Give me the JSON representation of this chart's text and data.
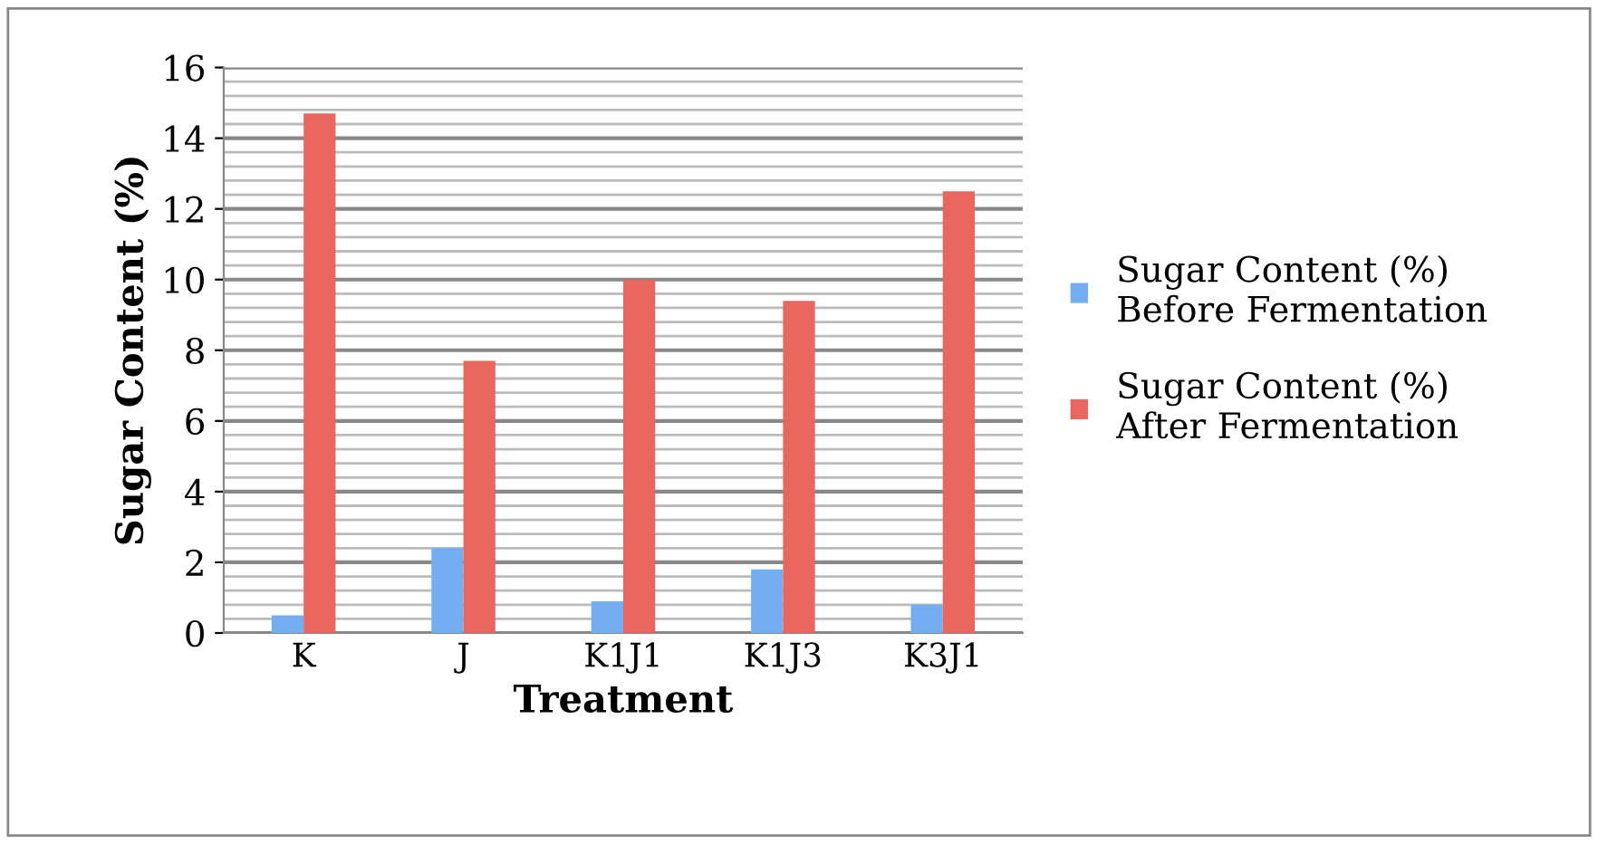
{
  "chart_data": {
    "type": "bar",
    "xlabel": "Treatment",
    "ylabel": "Sugar Content (%)",
    "categories": [
      "K",
      "J",
      "K1J1",
      "K1J3",
      "K3J1"
    ],
    "series": [
      {
        "name": "Sugar Content (%)\nBefore Fermentation",
        "color": "#74aef2",
        "values": [
          0.5,
          2.4,
          0.9,
          1.8,
          0.8
        ]
      },
      {
        "name": "Sugar Content (%)\nAfter Fermentation",
        "color": "#e8665e",
        "values": [
          14.7,
          7.7,
          10.0,
          9.4,
          12.5
        ]
      }
    ],
    "ylim": [
      0,
      16
    ],
    "yticks": [
      0,
      2,
      4,
      6,
      8,
      10,
      12,
      14,
      16
    ],
    "grid": "y",
    "legend": "right"
  }
}
